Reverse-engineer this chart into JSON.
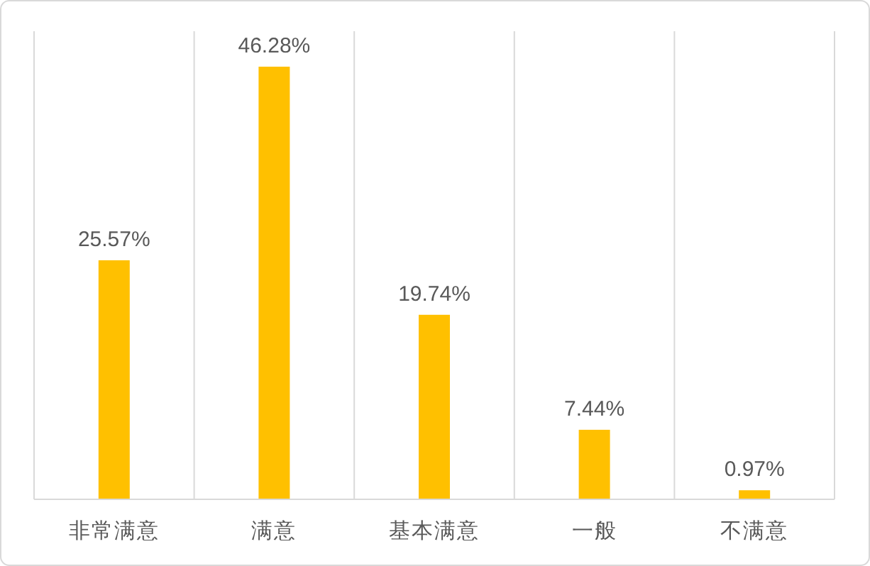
{
  "chart_data": {
    "type": "bar",
    "categories": [
      "非常满意",
      "满意",
      "基本满意",
      "一般",
      "不满意"
    ],
    "values": [
      25.57,
      46.28,
      19.74,
      7.44,
      0.97
    ],
    "value_labels": [
      "25.57%",
      "46.28%",
      "19.74%",
      "7.44%",
      "0.97%"
    ],
    "color": "#ffc000",
    "grid": "x",
    "legend": false
  }
}
